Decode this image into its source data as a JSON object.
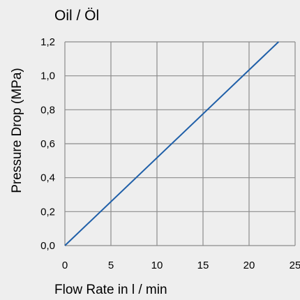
{
  "chart_data": {
    "type": "line",
    "title": "Oil / Öl",
    "xlabel": "Flow Rate in l / min",
    "ylabel": "Pressure Drop (MPa)",
    "xlim": [
      0,
      25
    ],
    "ylim": [
      0,
      1.2
    ],
    "x_ticks": [
      "0",
      "5",
      "10",
      "15",
      "20",
      "25"
    ],
    "y_ticks": [
      "0,0",
      "0,2",
      "0,4",
      "0,6",
      "0,8",
      "1,0",
      "1,2"
    ],
    "grid": true,
    "series": [
      {
        "x": [
          0,
          23.2
        ],
        "y": [
          0,
          1.2
        ],
        "color": "#1f5fa8"
      }
    ],
    "colors": {
      "grid": "#8c8c8c",
      "background": "#eeeeee"
    }
  }
}
